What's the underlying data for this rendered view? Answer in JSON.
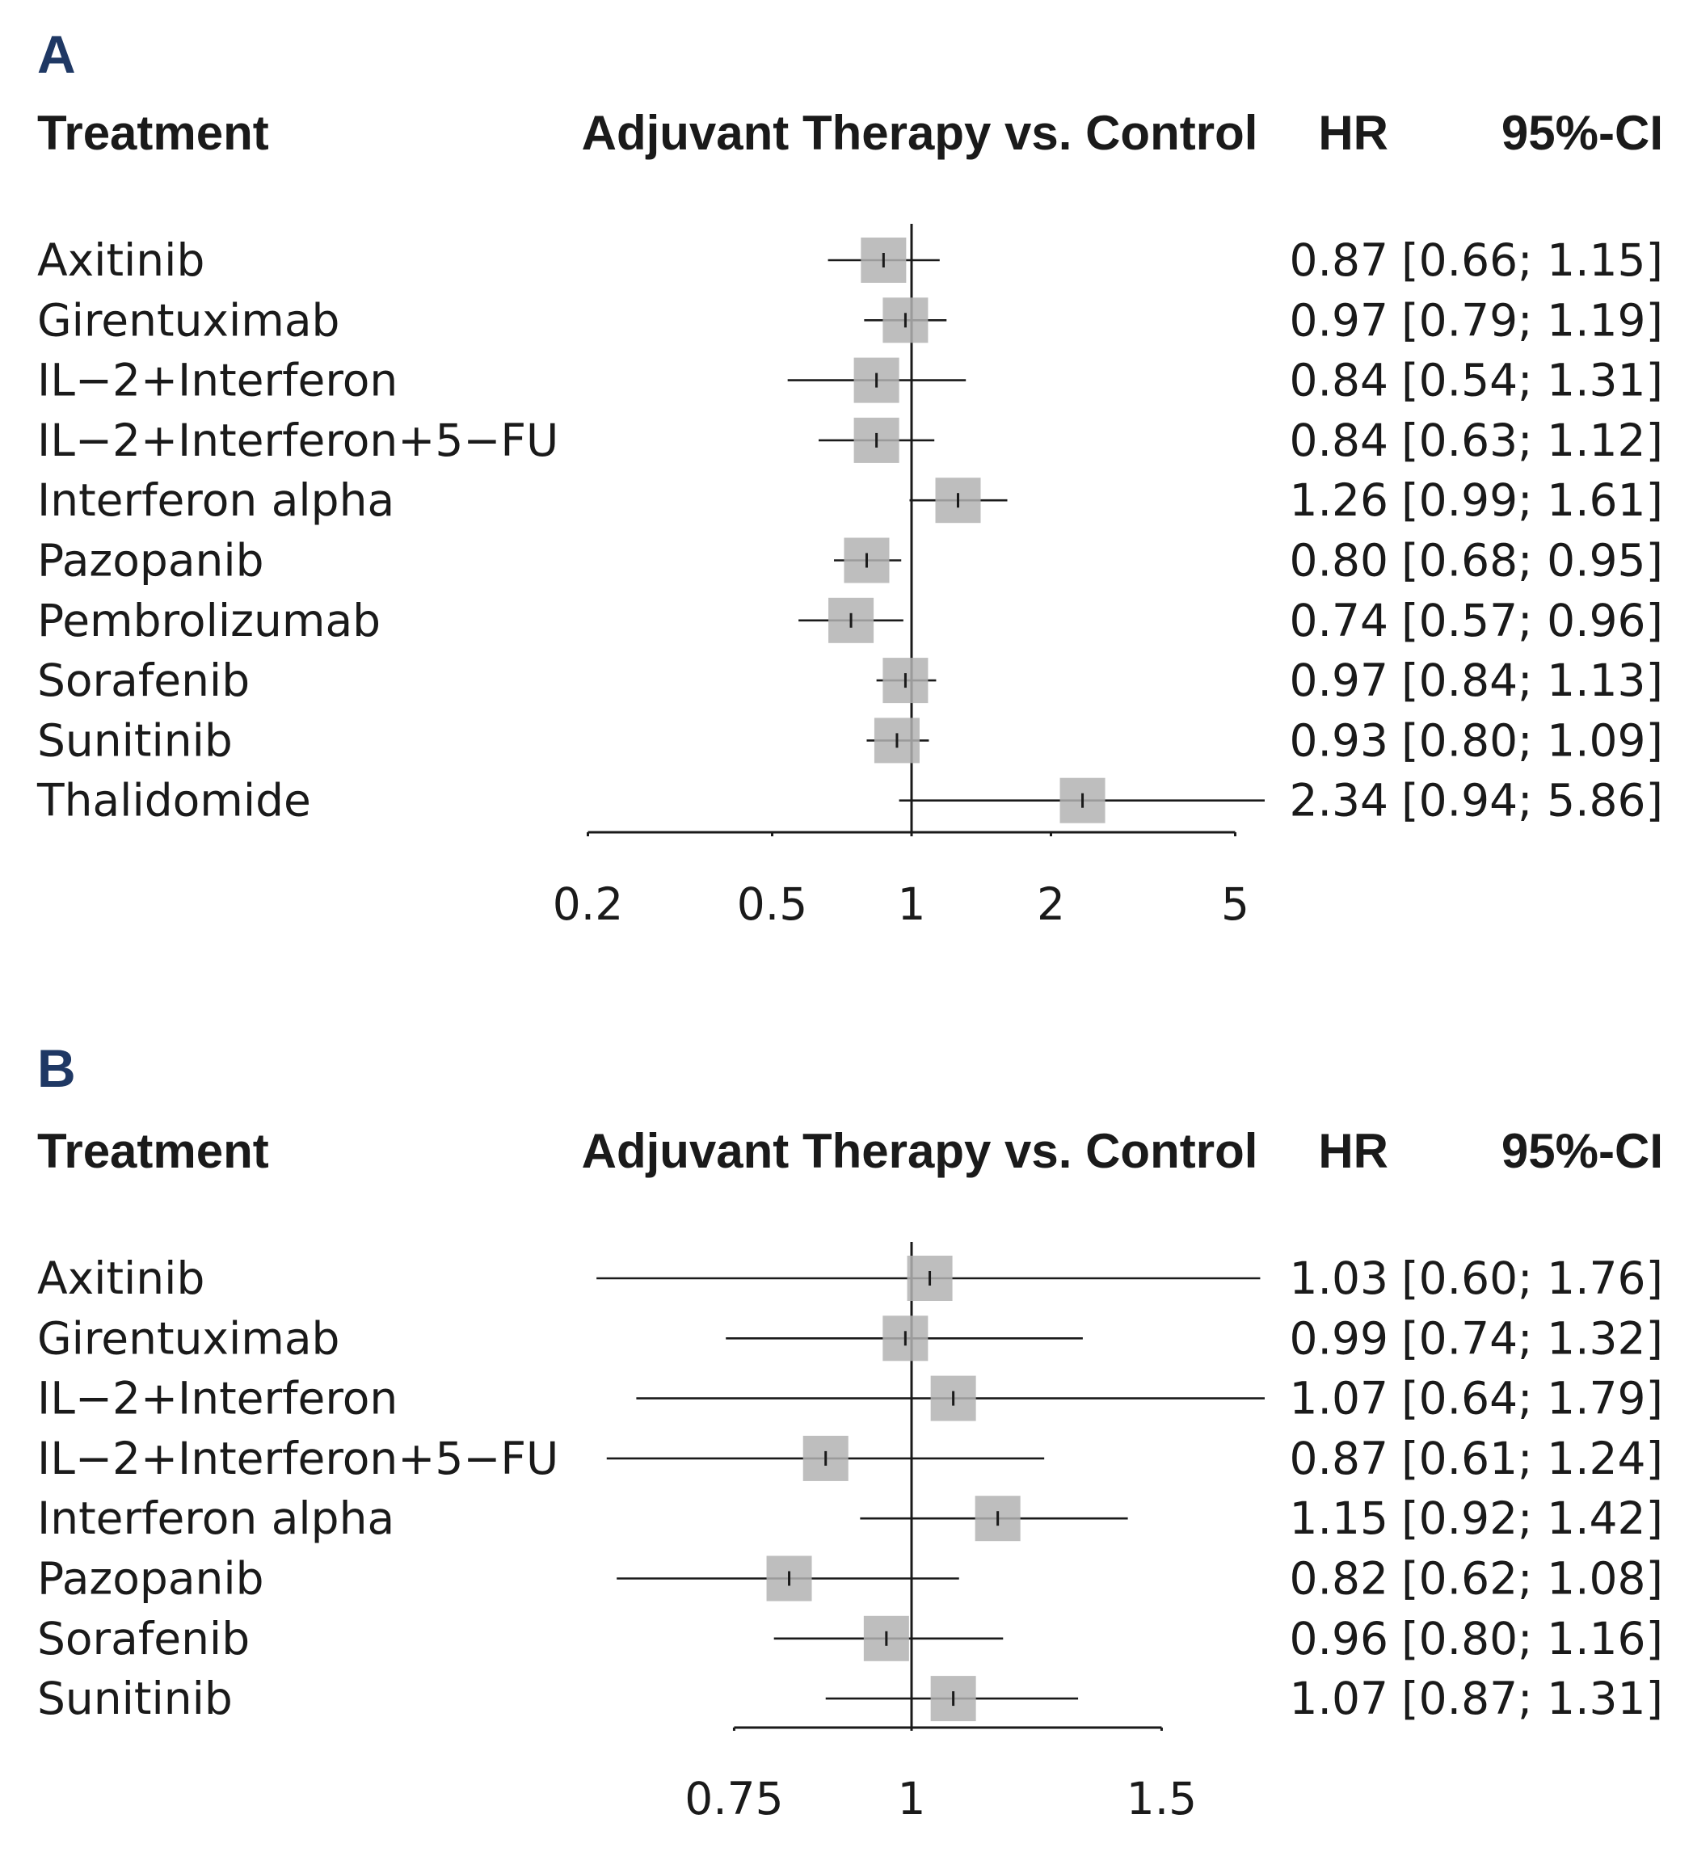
{
  "chart_data": [
    {
      "type": "forest",
      "panel": "A",
      "headers": {
        "treatment": "Treatment",
        "comparison": "Adjuvant Therapy vs. Control",
        "hr": "HR",
        "ci": "95%-CI"
      },
      "x_scale": "log",
      "xlim": [
        0.2,
        5
      ],
      "reference_line": 1,
      "x_ticks": [
        {
          "value": 0.2,
          "label": "0.2"
        },
        {
          "value": 0.5,
          "label": "0.5"
        },
        {
          "value": 1,
          "label": "1"
        },
        {
          "value": 2,
          "label": "2"
        },
        {
          "value": 5,
          "label": "5"
        }
      ],
      "rows": [
        {
          "treatment": "Axitinib",
          "hr": 0.87,
          "lo": 0.66,
          "hi": 1.15,
          "hr_text": "0.87",
          "ci_text": "[0.66; 1.15]"
        },
        {
          "treatment": "Girentuximab",
          "hr": 0.97,
          "lo": 0.79,
          "hi": 1.19,
          "hr_text": "0.97",
          "ci_text": "[0.79; 1.19]"
        },
        {
          "treatment": "IL−2+Interferon",
          "hr": 0.84,
          "lo": 0.54,
          "hi": 1.31,
          "hr_text": "0.84",
          "ci_text": "[0.54; 1.31]"
        },
        {
          "treatment": "IL−2+Interferon+5−FU",
          "hr": 0.84,
          "lo": 0.63,
          "hi": 1.12,
          "hr_text": "0.84",
          "ci_text": "[0.63; 1.12]"
        },
        {
          "treatment": "Interferon alpha",
          "hr": 1.26,
          "lo": 0.99,
          "hi": 1.61,
          "hr_text": "1.26",
          "ci_text": "[0.99; 1.61]"
        },
        {
          "treatment": "Pazopanib",
          "hr": 0.8,
          "lo": 0.68,
          "hi": 0.95,
          "hr_text": "0.80",
          "ci_text": "[0.68; 0.95]"
        },
        {
          "treatment": "Pembrolizumab",
          "hr": 0.74,
          "lo": 0.57,
          "hi": 0.96,
          "hr_text": "0.74",
          "ci_text": "[0.57; 0.96]"
        },
        {
          "treatment": "Sorafenib",
          "hr": 0.97,
          "lo": 0.84,
          "hi": 1.13,
          "hr_text": "0.97",
          "ci_text": "[0.84; 1.13]"
        },
        {
          "treatment": "Sunitinib",
          "hr": 0.93,
          "lo": 0.8,
          "hi": 1.09,
          "hr_text": "0.93",
          "ci_text": "[0.80; 1.09]"
        },
        {
          "treatment": "Thalidomide",
          "hr": 2.34,
          "lo": 0.94,
          "hi": 5.86,
          "hr_text": "2.34",
          "ci_text": "[0.94; 5.86]"
        }
      ]
    },
    {
      "type": "forest",
      "panel": "B",
      "headers": {
        "treatment": "Treatment",
        "comparison": "Adjuvant Therapy vs. Control",
        "hr": "HR",
        "ci": "95%-CI"
      },
      "x_scale": "log",
      "xlim": [
        0.75,
        1.5
      ],
      "reference_line": 1,
      "x_ticks": [
        {
          "value": 0.75,
          "label": "0.75"
        },
        {
          "value": 1,
          "label": "1"
        },
        {
          "value": 1.5,
          "label": "1.5"
        }
      ],
      "rows": [
        {
          "treatment": "Axitinib",
          "hr": 1.03,
          "lo": 0.6,
          "hi": 1.76,
          "hr_text": "1.03",
          "ci_text": "[0.60; 1.76]"
        },
        {
          "treatment": "Girentuximab",
          "hr": 0.99,
          "lo": 0.74,
          "hi": 1.32,
          "hr_text": "0.99",
          "ci_text": "[0.74; 1.32]"
        },
        {
          "treatment": "IL−2+Interferon",
          "hr": 1.07,
          "lo": 0.64,
          "hi": 1.79,
          "hr_text": "1.07",
          "ci_text": "[0.64; 1.79]"
        },
        {
          "treatment": "IL−2+Interferon+5−FU",
          "hr": 0.87,
          "lo": 0.61,
          "hi": 1.24,
          "hr_text": "0.87",
          "ci_text": "[0.61; 1.24]"
        },
        {
          "treatment": "Interferon alpha",
          "hr": 1.15,
          "lo": 0.92,
          "hi": 1.42,
          "hr_text": "1.15",
          "ci_text": "[0.92; 1.42]"
        },
        {
          "treatment": "Pazopanib",
          "hr": 0.82,
          "lo": 0.62,
          "hi": 1.08,
          "hr_text": "0.82",
          "ci_text": "[0.62; 1.08]"
        },
        {
          "treatment": "Sorafenib",
          "hr": 0.96,
          "lo": 0.8,
          "hi": 1.16,
          "hr_text": "0.96",
          "ci_text": "[0.80; 1.16]"
        },
        {
          "treatment": "Sunitinib",
          "hr": 1.07,
          "lo": 0.87,
          "hi": 1.31,
          "hr_text": "1.07",
          "ci_text": "[0.87; 1.31]"
        }
      ]
    }
  ],
  "colors": {
    "panel_label": "#1f3864",
    "text": "#1a1a1a",
    "box": "#b3b3b3",
    "line": "#1a1a1a"
  }
}
